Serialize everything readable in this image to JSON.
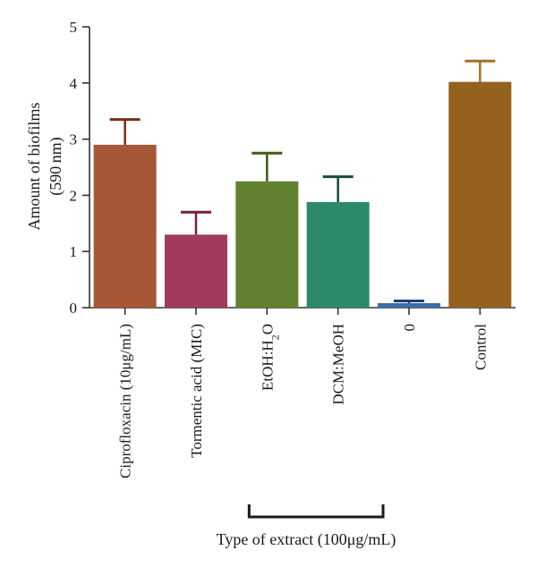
{
  "chart_data": {
    "type": "bar",
    "categories": [
      "Ciprofloxacin (10μg/mL)",
      "Tormentic acid (MIC)",
      "EtOH:H2O",
      "DCM:MeOH",
      "0",
      "Control"
    ],
    "values": [
      2.9,
      1.3,
      2.25,
      1.88,
      0.08,
      4.02
    ],
    "errors": [
      0.45,
      0.4,
      0.5,
      0.45,
      0.04,
      0.37
    ],
    "colors": [
      "#A65737",
      "#A03A5F",
      "#628130",
      "#2C8A6A",
      "#3E6BAE",
      "#94621E"
    ],
    "error_colors": [
      "#7A2E12",
      "#7B1D3C",
      "#3D5A15",
      "#154D38",
      "#1C3E78",
      "#B06E1E"
    ],
    "ylabel_line1": "Amount of biofilms",
    "ylabel_line2": "(590 nm)",
    "xlabel": "Type of extract (100μg/mL)",
    "ylim": [
      0,
      5
    ],
    "yticks": [
      0,
      1,
      2,
      3,
      4,
      5
    ],
    "bracket_categories": [
      "EtOH:H2O",
      "DCM:MeOH",
      "0"
    ]
  }
}
